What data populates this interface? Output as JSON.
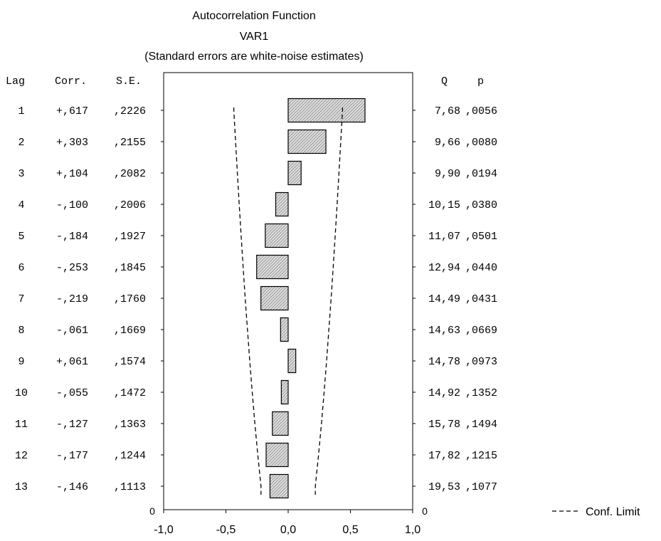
{
  "chart_data": {
    "type": "bar",
    "orientation": "horizontal",
    "title": "Autocorrelation Function",
    "subtitle": "VAR1",
    "note": "(Standard errors are white-noise estimates)",
    "columns": {
      "lag": "Lag",
      "corr": "Corr.",
      "se": "S.E.",
      "q": "Q",
      "p": "p"
    },
    "lags": [
      "1",
      "2",
      "3",
      "4",
      "5",
      "6",
      "7",
      "8",
      "9",
      "10",
      "11",
      "12",
      "13"
    ],
    "corr_labels": [
      "+,617",
      "+,303",
      "+,104",
      "-,100",
      "-,184",
      "-,253",
      "-,219",
      "-,061",
      "+,061",
      "-,055",
      "-,127",
      "-,177",
      "-,146"
    ],
    "values": [
      0.617,
      0.303,
      0.104,
      -0.1,
      -0.184,
      -0.253,
      -0.219,
      -0.061,
      0.061,
      -0.055,
      -0.127,
      -0.177,
      -0.146
    ],
    "se_labels": [
      ",2226",
      ",2155",
      ",2082",
      ",2006",
      ",1927",
      ",1845",
      ",1760",
      ",1669",
      ",1574",
      ",1472",
      ",1363",
      ",1244",
      ",1113"
    ],
    "se_values": [
      0.2226,
      0.2155,
      0.2082,
      0.2006,
      0.1927,
      0.1845,
      0.176,
      0.1669,
      0.1574,
      0.1472,
      0.1363,
      0.1244,
      0.1113
    ],
    "q_labels": [
      "7,68",
      "9,66",
      "9,90",
      "10,15",
      "11,07",
      "12,94",
      "14,49",
      "14,63",
      "14,78",
      "14,92",
      "15,78",
      "17,82",
      "19,53"
    ],
    "p_labels": [
      ",0056",
      ",0080",
      ",0194",
      ",0380",
      ",0501",
      ",0440",
      ",0431",
      ",0669",
      ",0973",
      ",1352",
      ",1494",
      ",1215",
      ",1077"
    ],
    "conf_limit_multiplier": 1.96,
    "xlim": [
      -1.0,
      1.0
    ],
    "x_ticks": [
      "-1,0",
      "-0,5",
      "0,0",
      "0,5",
      "1,0"
    ],
    "x_tick_values": [
      -1.0,
      -0.5,
      0.0,
      0.5,
      1.0
    ],
    "left_zero_label": "0",
    "right_zero_label": "0",
    "legend": {
      "label": "Conf. Limit",
      "position": "bottom-right"
    },
    "bar_fill": "#d8d8d8",
    "bar_stroke": "#000000"
  }
}
